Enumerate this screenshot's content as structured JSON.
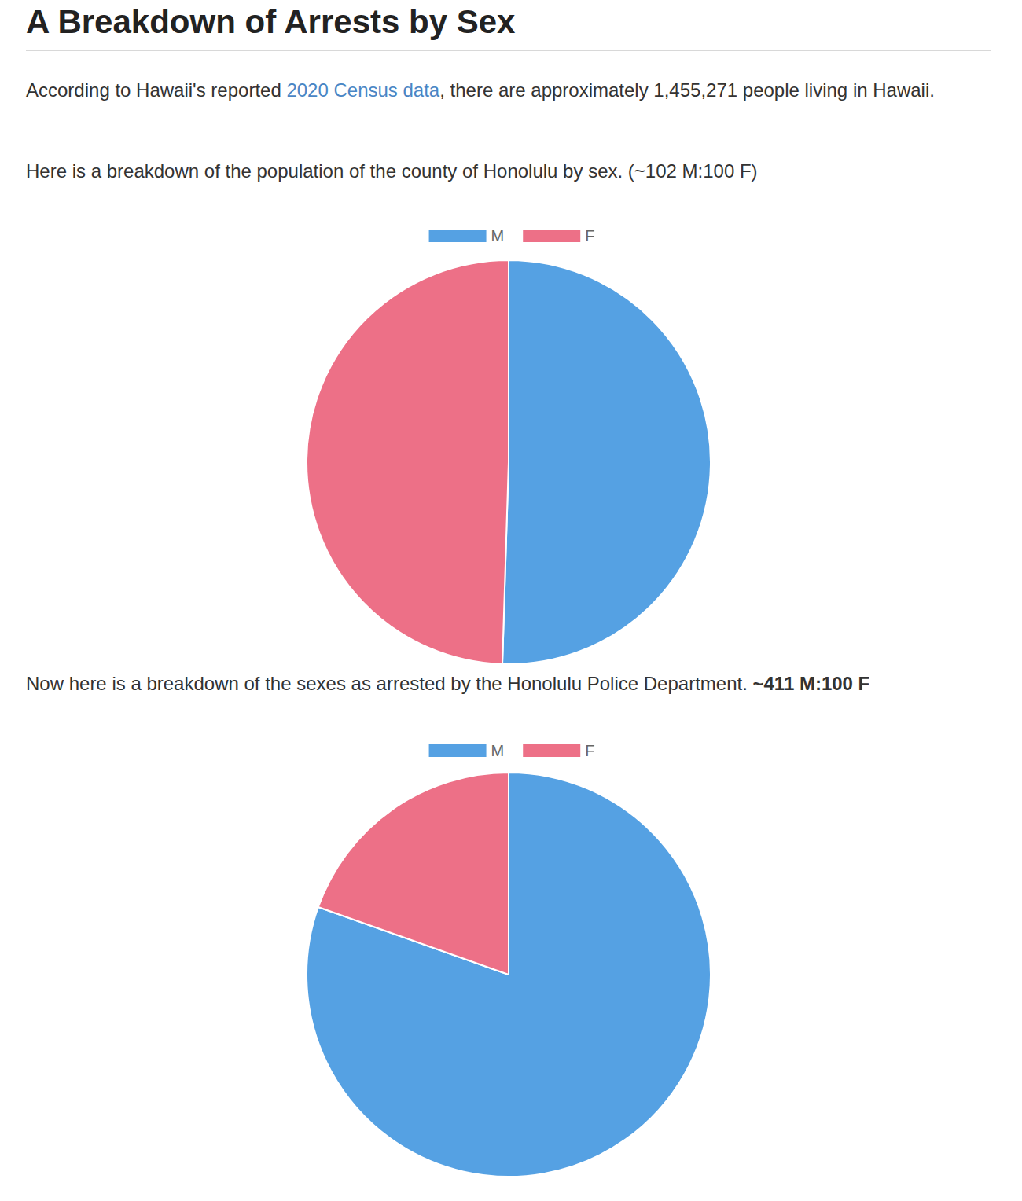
{
  "document": {
    "title": "A Breakdown of Arrests by Sex",
    "paragraphs": [
      [
        {
          "text": "According to Hawaii's reported "
        },
        {
          "text": "2020 Census data",
          "link": true
        },
        {
          "text": ", there are approximately 1,455,271 people living in Hawaii."
        }
      ],
      [
        {
          "text": "Here is a breakdown of the population of the county of Honolulu by sex. (~102 M:100 F)"
        }
      ],
      [
        {
          "text": "Now here is a breakdown of the sexes as arrested by the Honolulu Police Department. "
        },
        {
          "text": "~411 M:100 F",
          "bold": true
        }
      ]
    ]
  },
  "chart_data": [
    {
      "type": "pie",
      "categories": [
        "M",
        "F"
      ],
      "values": [
        102,
        100
      ],
      "colors": [
        "#55a1e3",
        "#ed7087"
      ],
      "legend": "top",
      "data_labels": false
    },
    {
      "type": "pie",
      "categories": [
        "M",
        "F"
      ],
      "values": [
        411,
        100
      ],
      "colors": [
        "#55a1e3",
        "#ed7087"
      ],
      "legend": "top",
      "data_labels": false
    }
  ]
}
